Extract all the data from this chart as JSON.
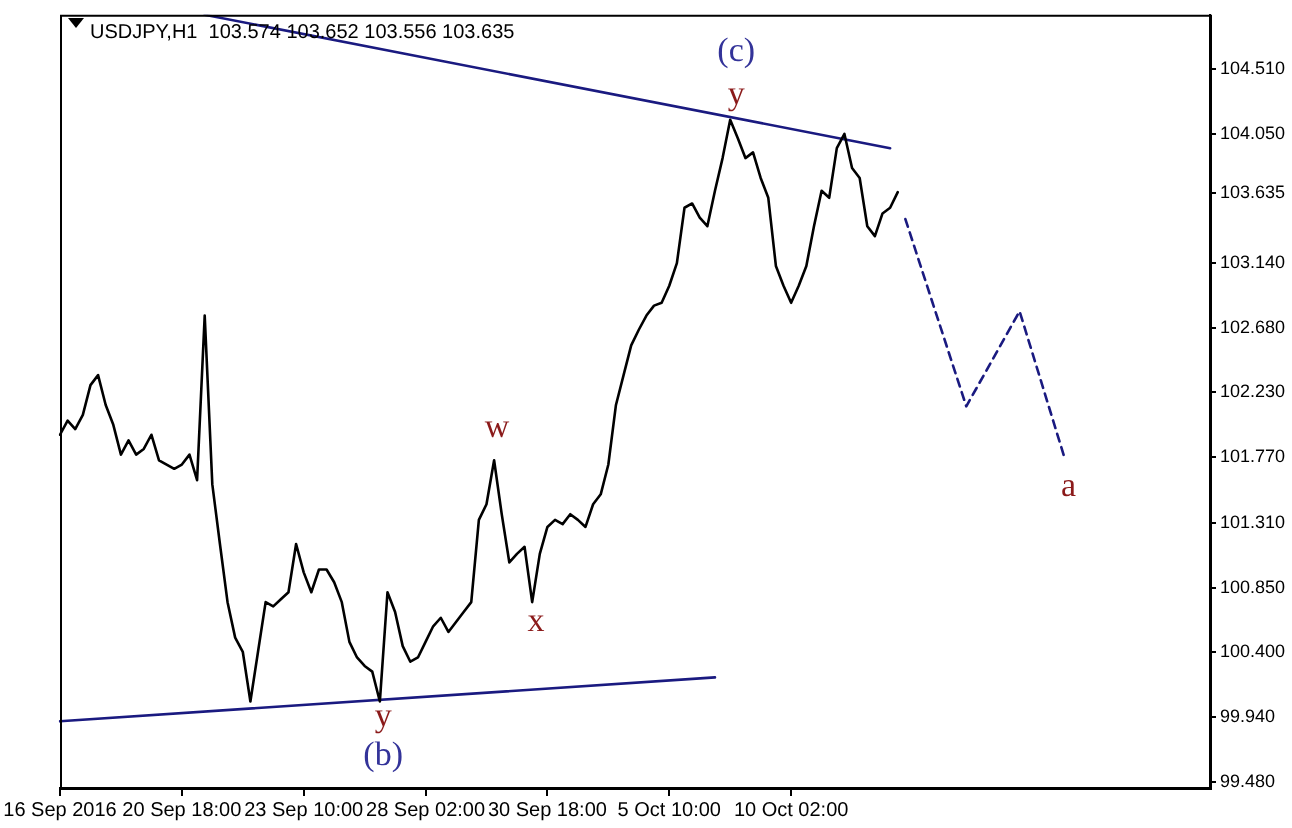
{
  "chart_data": {
    "type": "line",
    "title": "USDJPY,H1  103.574 103.652 103.556 103.635",
    "categories": [
      "16 Sep 2016",
      null,
      null,
      null,
      null,
      null,
      null,
      null,
      null,
      null,
      null,
      null,
      null,
      null,
      null,
      null,
      "20 Sep 18:00",
      null,
      null,
      null,
      null,
      null,
      null,
      null,
      null,
      null,
      null,
      null,
      null,
      null,
      null,
      null,
      "23 Sep 10:00",
      null,
      null,
      null,
      null,
      null,
      null,
      null,
      null,
      null,
      null,
      null,
      null,
      null,
      null,
      null,
      "28 Sep 02:00",
      null,
      null,
      null,
      null,
      null,
      null,
      null,
      null,
      null,
      null,
      null,
      null,
      null,
      null,
      null,
      "30 Sep 18:00",
      null,
      null,
      null,
      null,
      null,
      null,
      null,
      null,
      null,
      null,
      null,
      null,
      null,
      null,
      null,
      "5 Oct 10:00",
      null,
      null,
      null,
      null,
      null,
      null,
      null,
      null,
      null,
      null,
      null,
      null,
      null,
      null,
      null,
      "10 Oct 02:00",
      null,
      null,
      null,
      null,
      null,
      null,
      null,
      null,
      null,
      null,
      null,
      null,
      null,
      null,
      null,
      null,
      null,
      null,
      null,
      null,
      null,
      null,
      null,
      null,
      null,
      null,
      null,
      null,
      null,
      null,
      null,
      null,
      null,
      null,
      null,
      null,
      null,
      null,
      null,
      null,
      null,
      null,
      null,
      null,
      null,
      null,
      null,
      null,
      null,
      null,
      null,
      null,
      null,
      null,
      null
    ],
    "series": [
      {
        "color": "#000000",
        "values": [
          101.93,
          102.03,
          101.97,
          102.07,
          102.28,
          102.35,
          102.14,
          102.0,
          101.79,
          101.89,
          101.79,
          101.83,
          101.93,
          101.75,
          101.72,
          101.69,
          101.72,
          101.79,
          101.61,
          102.77,
          101.58,
          101.16,
          100.75,
          100.5,
          100.4,
          100.05,
          100.4,
          100.75,
          100.72,
          100.77,
          100.82,
          101.16,
          100.96,
          100.82,
          100.98,
          100.98,
          100.89,
          100.75,
          100.47,
          100.36,
          100.3,
          100.26,
          100.05,
          100.82,
          100.68,
          100.44,
          100.33,
          100.36,
          100.47,
          100.58,
          100.64,
          100.54,
          100.61,
          100.68,
          100.75,
          101.33,
          101.44,
          101.75,
          101.37,
          101.03,
          101.09,
          101.14,
          100.75,
          101.09,
          101.28,
          101.33,
          101.3,
          101.37,
          101.33,
          101.28,
          101.44,
          101.51,
          101.72,
          102.14,
          102.35,
          102.56,
          102.67,
          102.77,
          102.84,
          102.86,
          102.98,
          103.14,
          103.53,
          103.56,
          103.46,
          103.4,
          103.65,
          103.88,
          104.15,
          104.02,
          103.88,
          103.92,
          103.74,
          103.6,
          103.12,
          102.98,
          102.86,
          102.98,
          103.12,
          103.4,
          103.65,
          103.6,
          103.95,
          104.05,
          103.81,
          103.74,
          103.4,
          103.33,
          103.49,
          103.53,
          103.64,
          null,
          null,
          null,
          null,
          null,
          null,
          null,
          null,
          null,
          null,
          null,
          null,
          null,
          null,
          null,
          null,
          null,
          null,
          null,
          null,
          null,
          null,
          null,
          null,
          null,
          null,
          null,
          null,
          null,
          null,
          null,
          null,
          null,
          null,
          null,
          null,
          null,
          null,
          null,
          null,
          null
        ]
      },
      {
        "color": "#1a1a80",
        "line_style": "dashed",
        "values": [
          null,
          null,
          null,
          null,
          null,
          null,
          null,
          null,
          null,
          null,
          null,
          null,
          null,
          null,
          null,
          null,
          null,
          null,
          null,
          null,
          null,
          null,
          null,
          null,
          null,
          null,
          null,
          null,
          null,
          null,
          null,
          null,
          null,
          null,
          null,
          null,
          null,
          null,
          null,
          null,
          null,
          null,
          null,
          null,
          null,
          null,
          null,
          null,
          null,
          null,
          null,
          null,
          null,
          null,
          null,
          null,
          null,
          null,
          null,
          null,
          null,
          null,
          null,
          null,
          null,
          null,
          null,
          null,
          null,
          null,
          null,
          null,
          null,
          null,
          null,
          null,
          null,
          null,
          null,
          null,
          null,
          null,
          null,
          null,
          null,
          null,
          null,
          null,
          null,
          null,
          null,
          null,
          null,
          null,
          null,
          null,
          null,
          null,
          null,
          null,
          null,
          null,
          null,
          null,
          null,
          null,
          null,
          null,
          null,
          null,
          null,
          103.45,
          null,
          null,
          null,
          null,
          null,
          null,
          null,
          102.13,
          null,
          null,
          null,
          null,
          null,
          null,
          102.8,
          null,
          null,
          null,
          null,
          null,
          101.75,
          null,
          null,
          null,
          null,
          null,
          null,
          null,
          null,
          null,
          null,
          null,
          null,
          null,
          null,
          null,
          null,
          null,
          null,
          null
        ]
      },
      {
        "color": "#1a1a80",
        "values": [
          null,
          null,
          null,
          null,
          null,
          null,
          null,
          null,
          null,
          null,
          null,
          null,
          null,
          null,
          null,
          null,
          null,
          null,
          null,
          104.89,
          null,
          null,
          null,
          null,
          null,
          null,
          null,
          null,
          null,
          null,
          null,
          null,
          null,
          null,
          null,
          null,
          null,
          null,
          null,
          null,
          null,
          null,
          null,
          null,
          null,
          null,
          null,
          null,
          null,
          null,
          null,
          null,
          null,
          null,
          null,
          null,
          null,
          null,
          null,
          null,
          null,
          null,
          null,
          null,
          null,
          null,
          null,
          null,
          null,
          null,
          null,
          null,
          null,
          null,
          null,
          null,
          null,
          null,
          null,
          null,
          null,
          null,
          null,
          null,
          null,
          null,
          null,
          null,
          null,
          null,
          null,
          null,
          null,
          null,
          null,
          null,
          null,
          null,
          null,
          null,
          null,
          null,
          null,
          null,
          null,
          null,
          null,
          null,
          null,
          103.95,
          null,
          null,
          null,
          null,
          null,
          null,
          null,
          null,
          null,
          null,
          null,
          null,
          null,
          null,
          null,
          null,
          null,
          null,
          null,
          null,
          null,
          null,
          null,
          null,
          null,
          null,
          null,
          null,
          null,
          null,
          null,
          null,
          null,
          null,
          null,
          null,
          null,
          null,
          null,
          null,
          null,
          null
        ]
      },
      {
        "color": "#1a1a80",
        "values": [
          99.91,
          null,
          null,
          null,
          null,
          null,
          null,
          null,
          null,
          null,
          null,
          null,
          null,
          null,
          null,
          null,
          null,
          null,
          null,
          null,
          null,
          null,
          null,
          null,
          null,
          null,
          null,
          null,
          null,
          null,
          null,
          null,
          null,
          null,
          null,
          null,
          null,
          null,
          null,
          null,
          null,
          null,
          null,
          null,
          null,
          null,
          null,
          null,
          null,
          null,
          null,
          null,
          null,
          null,
          null,
          null,
          null,
          null,
          null,
          null,
          null,
          null,
          null,
          null,
          null,
          null,
          null,
          null,
          null,
          null,
          null,
          null,
          null,
          null,
          null,
          null,
          null,
          null,
          null,
          null,
          null,
          null,
          null,
          null,
          null,
          null,
          100.22,
          null,
          null,
          null,
          null,
          null,
          null,
          null,
          null,
          null,
          null,
          null,
          null,
          null,
          null,
          null,
          null,
          null,
          null,
          null,
          null,
          null,
          null,
          null,
          null,
          null,
          null,
          null,
          null,
          null,
          null,
          null,
          null,
          null,
          null,
          null,
          null,
          null,
          null,
          null,
          null,
          null,
          null,
          null,
          null,
          null,
          null,
          null,
          null,
          null,
          null,
          null,
          null,
          null,
          null,
          null,
          null,
          null,
          null,
          null,
          null,
          null,
          null,
          null,
          null,
          null
        ]
      }
    ],
    "ylim": [
      99.44,
      104.89
    ],
    "yticks": [
      {
        "value": 99.48,
        "label": "99.480"
      },
      {
        "value": 99.94,
        "label": "99.940"
      },
      {
        "value": 100.4,
        "label": "100.400"
      },
      {
        "value": 100.85,
        "label": "100.850"
      },
      {
        "value": 101.31,
        "label": "101.310"
      },
      {
        "value": 101.77,
        "label": "101.770"
      },
      {
        "value": 102.23,
        "label": "102.230"
      },
      {
        "value": 102.68,
        "label": "102.680"
      },
      {
        "value": 103.14,
        "label": "103.140"
      },
      {
        "value": 103.635,
        "label": "103.635"
      },
      {
        "value": 104.05,
        "label": "104.050"
      },
      {
        "value": 104.51,
        "label": "104.510"
      }
    ],
    "annotations": [
      "(c)",
      "y",
      "w",
      "x",
      "y",
      "(b)",
      "a"
    ],
    "grid": false,
    "legend": false,
    "marker": "none",
    "line_style": "solid"
  }
}
